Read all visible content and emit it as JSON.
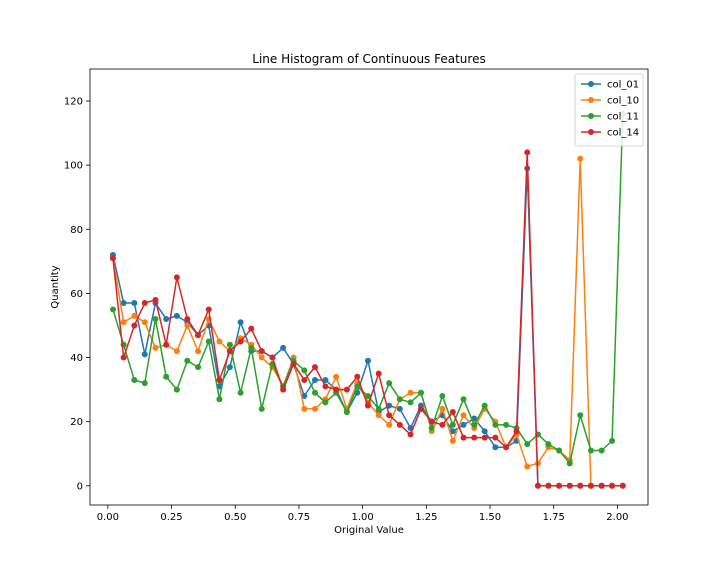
{
  "chart_data": {
    "type": "line",
    "title": "Line Histogram of Continuous Features",
    "xlabel": "Original Value",
    "ylabel": "Quantity",
    "xlim": [
      -0.07,
      2.12
    ],
    "ylim": [
      -6,
      130
    ],
    "xticks": [
      0.0,
      0.25,
      0.5,
      0.75,
      1.0,
      1.25,
      1.5,
      1.75,
      2.0
    ],
    "xtick_labels": [
      "0.00",
      "0.25",
      "0.50",
      "0.75",
      "1.00",
      "1.25",
      "1.50",
      "1.75",
      "2.00"
    ],
    "yticks": [
      0,
      20,
      40,
      60,
      80,
      100,
      120
    ],
    "ytick_labels": [
      "0",
      "20",
      "40",
      "60",
      "80",
      "100",
      "120"
    ],
    "grid": false,
    "legend_position": "top-right",
    "x": [
      0.02,
      0.062,
      0.104,
      0.145,
      0.187,
      0.229,
      0.271,
      0.312,
      0.354,
      0.396,
      0.438,
      0.479,
      0.521,
      0.563,
      0.604,
      0.646,
      0.688,
      0.729,
      0.771,
      0.813,
      0.854,
      0.896,
      0.938,
      0.979,
      1.021,
      1.063,
      1.104,
      1.146,
      1.188,
      1.229,
      1.271,
      1.313,
      1.354,
      1.396,
      1.438,
      1.479,
      1.521,
      1.563,
      1.604,
      1.646,
      1.688,
      1.729,
      1.771,
      1.813,
      1.854,
      1.896,
      1.938,
      1.979,
      2.021
    ],
    "series": [
      {
        "name": "col_01",
        "color": "#1f77b4",
        "values": [
          72,
          57,
          57,
          41,
          57,
          52,
          53,
          51,
          47,
          50,
          31,
          37,
          51,
          42,
          42,
          40,
          43,
          38,
          28,
          33,
          33,
          30,
          23,
          29,
          39,
          23,
          25,
          24,
          18,
          25,
          20,
          22,
          17,
          19,
          21,
          17,
          12,
          12,
          14,
          99,
          0,
          0,
          0,
          0,
          0,
          0,
          0,
          0,
          0
        ]
      },
      {
        "name": "col_10",
        "color": "#ff7f0e",
        "values": [
          71,
          51,
          53,
          51,
          43,
          44,
          42,
          50,
          42,
          52,
          45,
          42,
          46,
          44,
          40,
          37,
          31,
          40,
          24,
          24,
          27,
          34,
          24,
          32,
          26,
          22,
          19,
          27,
          29,
          29,
          17,
          24,
          14,
          22,
          18,
          24,
          20,
          12,
          16,
          6,
          7,
          12,
          11,
          8,
          102,
          0,
          0,
          0,
          0
        ]
      },
      {
        "name": "col_11",
        "color": "#2ca02c",
        "values": [
          55,
          44,
          33,
          32,
          52,
          34,
          30,
          39,
          37,
          45,
          27,
          44,
          29,
          43,
          24,
          38,
          31,
          39,
          36,
          29,
          26,
          29,
          23,
          31,
          28,
          24,
          32,
          27,
          26,
          29,
          18,
          28,
          19,
          27,
          19,
          25,
          19,
          19,
          18,
          13,
          16,
          13,
          11,
          7,
          22,
          11,
          11,
          14,
          116
        ]
      },
      {
        "name": "col_14",
        "color": "#d62728",
        "values": [
          71,
          40,
          50,
          57,
          58,
          44,
          65,
          52,
          47,
          55,
          33,
          42,
          45,
          49,
          42,
          40,
          30,
          38,
          33,
          37,
          31,
          30,
          30,
          34,
          25,
          35,
          22,
          19,
          16,
          24,
          20,
          19,
          23,
          15,
          15,
          15,
          15,
          12,
          17,
          104,
          0,
          0,
          0,
          0,
          0,
          0,
          0,
          0,
          0
        ]
      }
    ]
  }
}
